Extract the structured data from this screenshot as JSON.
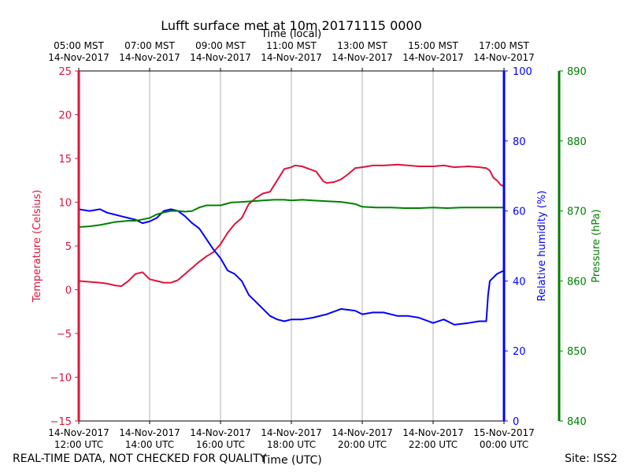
{
  "chart_data": {
    "type": "line",
    "title": "Lufft surface met at 10m 20171115 0000",
    "top_axis": {
      "label": "Time (local)",
      "ticks": [
        {
          "line1": "05:00 MST",
          "line2": "14-Nov-2017"
        },
        {
          "line1": "07:00 MST",
          "line2": "14-Nov-2017"
        },
        {
          "line1": "09:00 MST",
          "line2": "14-Nov-2017"
        },
        {
          "line1": "11:00 MST",
          "line2": "14-Nov-2017"
        },
        {
          "line1": "13:00 MST",
          "line2": "14-Nov-2017"
        },
        {
          "line1": "15:00 MST",
          "line2": "14-Nov-2017"
        },
        {
          "line1": "17:00 MST",
          "line2": "14-Nov-2017"
        }
      ]
    },
    "bottom_axis": {
      "label": "Time (UTC)",
      "ticks": [
        {
          "line1": "14-Nov-2017",
          "line2": "12:00 UTC"
        },
        {
          "line1": "14-Nov-2017",
          "line2": "14:00 UTC"
        },
        {
          "line1": "14-Nov-2017",
          "line2": "16:00 UTC"
        },
        {
          "line1": "14-Nov-2017",
          "line2": "18:00 UTC"
        },
        {
          "line1": "14-Nov-2017",
          "line2": "20:00 UTC"
        },
        {
          "line1": "14-Nov-2017",
          "line2": "22:00 UTC"
        },
        {
          "line1": "15-Nov-2017",
          "line2": "00:00 UTC"
        }
      ]
    },
    "xlim_hours_utc": [
      12,
      24
    ],
    "grid": true,
    "y_axes": [
      {
        "key": "temp",
        "label": "Temperature (Celsius)",
        "color": "#dc143c",
        "lim": [
          -15,
          25
        ],
        "ticks": [
          -15,
          -10,
          -5,
          0,
          5,
          10,
          15,
          20,
          25
        ],
        "tick_labels": [
          "−15",
          "−10",
          "−5",
          "0",
          "5",
          "10",
          "15",
          "20",
          "25"
        ]
      },
      {
        "key": "rh",
        "label": "Relative humidity (%)",
        "color": "#0000ff",
        "lim": [
          0,
          100
        ],
        "ticks": [
          0,
          20,
          40,
          60,
          80,
          100
        ],
        "tick_labels": [
          "0",
          "20",
          "40",
          "60",
          "80",
          "100"
        ]
      },
      {
        "key": "pres",
        "label": "Pressure (hPa)",
        "color": "#008000",
        "lim": [
          840,
          890
        ],
        "ticks": [
          840,
          850,
          860,
          870,
          880,
          890
        ],
        "tick_labels": [
          "840",
          "850",
          "860",
          "870",
          "880",
          "890"
        ]
      }
    ],
    "series": [
      {
        "name": "Temperature",
        "axis": "temp",
        "color": "#dc143c",
        "x": [
          12.0,
          12.3,
          12.6,
          12.8,
          13.0,
          13.2,
          13.4,
          13.6,
          13.8,
          14.0,
          14.2,
          14.4,
          14.6,
          14.8,
          15.0,
          15.2,
          15.4,
          15.6,
          15.8,
          16.0,
          16.2,
          16.4,
          16.6,
          16.8,
          17.0,
          17.2,
          17.4,
          17.6,
          17.8,
          18.0,
          18.1,
          18.3,
          18.5,
          18.7,
          18.9,
          19.0,
          19.2,
          19.4,
          19.6,
          19.8,
          20.0,
          20.3,
          20.6,
          21.0,
          21.3,
          21.6,
          22.0,
          22.3,
          22.6,
          23.0,
          23.3,
          23.5,
          23.6,
          23.7,
          23.8,
          23.9,
          24.0
        ],
        "values": [
          1.0,
          0.9,
          0.8,
          0.7,
          0.5,
          0.4,
          1.0,
          1.8,
          2.0,
          1.2,
          1.0,
          0.8,
          0.8,
          1.1,
          1.8,
          2.5,
          3.2,
          3.8,
          4.3,
          5.2,
          6.5,
          7.5,
          8.2,
          9.8,
          10.5,
          11.0,
          11.2,
          12.5,
          13.8,
          14.0,
          14.2,
          14.1,
          13.8,
          13.5,
          12.4,
          12.2,
          12.3,
          12.6,
          13.2,
          13.9,
          14.0,
          14.2,
          14.2,
          14.3,
          14.2,
          14.1,
          14.1,
          14.2,
          14.0,
          14.1,
          14.0,
          13.9,
          13.6,
          12.8,
          12.5,
          12.0,
          11.8
        ]
      },
      {
        "name": "Relative humidity",
        "axis": "rh",
        "color": "#0000ff",
        "x": [
          12.0,
          12.3,
          12.6,
          12.8,
          13.0,
          13.2,
          13.4,
          13.6,
          13.8,
          14.0,
          14.2,
          14.4,
          14.6,
          14.8,
          15.0,
          15.2,
          15.4,
          15.6,
          15.8,
          16.0,
          16.2,
          16.4,
          16.6,
          16.8,
          17.0,
          17.2,
          17.4,
          17.6,
          17.8,
          18.0,
          18.3,
          18.6,
          19.0,
          19.4,
          19.8,
          20.0,
          20.3,
          20.6,
          21.0,
          21.3,
          21.6,
          22.0,
          22.3,
          22.6,
          23.0,
          23.3,
          23.5,
          23.55,
          23.6,
          23.8,
          24.0
        ],
        "values": [
          60.5,
          60.0,
          60.5,
          59.5,
          59.0,
          58.5,
          58.0,
          57.5,
          56.5,
          57.0,
          58.0,
          60.0,
          60.5,
          60.0,
          58.5,
          56.5,
          55.0,
          52.0,
          49.0,
          46.5,
          43.0,
          42.0,
          40.0,
          36.0,
          34.0,
          32.0,
          30.0,
          29.0,
          28.5,
          29.0,
          29.0,
          29.5,
          30.5,
          32.0,
          31.5,
          30.5,
          31.0,
          31.0,
          30.0,
          30.0,
          29.5,
          28.0,
          29.0,
          27.5,
          28.0,
          28.5,
          28.5,
          36.0,
          40.0,
          42.0,
          43.0
        ]
      },
      {
        "name": "Pressure",
        "axis": "pres",
        "color": "#008000",
        "x": [
          12.0,
          12.3,
          12.6,
          12.8,
          13.0,
          13.2,
          13.4,
          13.6,
          13.8,
          14.0,
          14.2,
          14.4,
          14.6,
          14.8,
          15.0,
          15.2,
          15.4,
          15.6,
          15.8,
          16.0,
          16.3,
          16.6,
          16.9,
          17.2,
          17.5,
          17.8,
          18.0,
          18.3,
          18.6,
          19.0,
          19.4,
          19.8,
          20.0,
          20.4,
          20.8,
          21.2,
          21.6,
          22.0,
          22.4,
          22.8,
          23.2,
          23.6,
          24.0
        ],
        "values": [
          867.7,
          867.8,
          868.0,
          868.2,
          868.4,
          868.5,
          868.6,
          868.6,
          868.8,
          869.0,
          869.5,
          869.8,
          870.0,
          870.0,
          869.9,
          870.0,
          870.5,
          870.8,
          870.8,
          870.8,
          871.2,
          871.3,
          871.4,
          871.5,
          871.6,
          871.6,
          871.5,
          871.6,
          871.5,
          871.4,
          871.3,
          871.0,
          870.6,
          870.5,
          870.5,
          870.4,
          870.4,
          870.5,
          870.4,
          870.5,
          870.5,
          870.5,
          870.5
        ]
      }
    ]
  },
  "footer": {
    "left": "REAL-TIME DATA, NOT CHECKED FOR QUALITY",
    "right": "Site: ISS2"
  }
}
